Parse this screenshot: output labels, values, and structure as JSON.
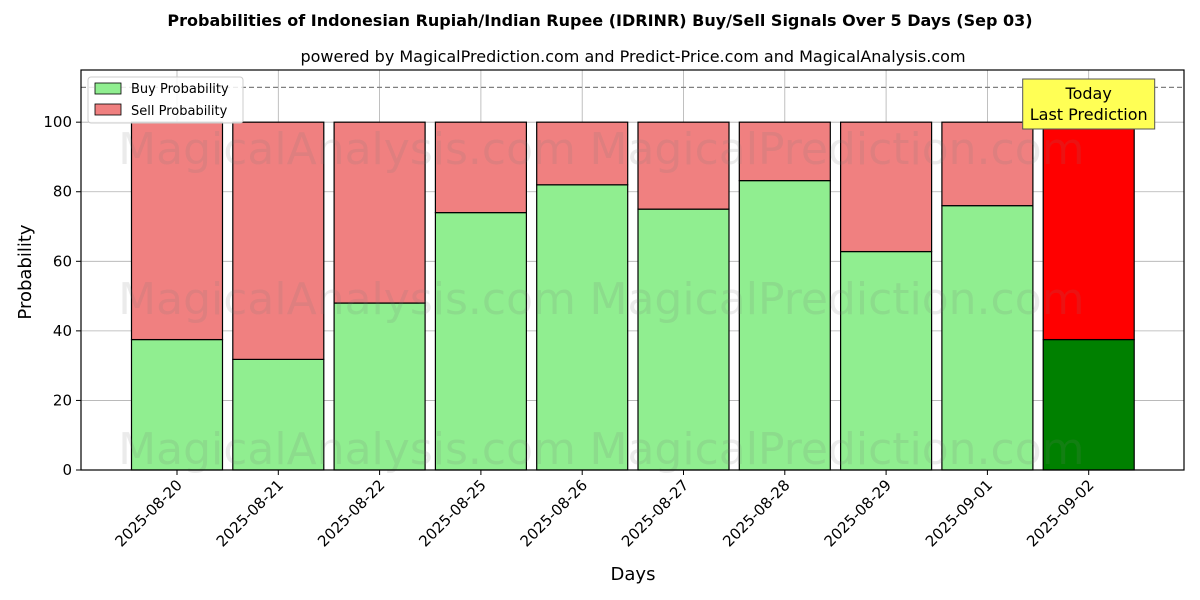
{
  "colors": {
    "buy": "#90ee90",
    "sell": "#f08080",
    "buy_today": "#008000",
    "sell_today": "#ff0000",
    "annotation_bg": "#ffff55",
    "grid": "#b0b0b0"
  },
  "watermarks": [
    "MagicalAnalysis.com",
    "MagicalPrediction.com"
  ],
  "chart_data": {
    "type": "bar",
    "stacked": true,
    "title": "Probabilities of Indonesian Rupiah/Indian Rupee (IDRINR) Buy/Sell Signals Over 5 Days (Sep 03)",
    "subtitle": "powered by MagicalPrediction.com and Predict-Price.com and MagicalAnalysis.com",
    "xlabel": "Days",
    "ylabel": "Probability",
    "ylim": [
      0,
      115
    ],
    "yticks": [
      0,
      20,
      40,
      60,
      80,
      100
    ],
    "grid": true,
    "legend_position": "top-left",
    "reference_line": 110,
    "categories": [
      "2025-08-20",
      "2025-08-21",
      "2025-08-22",
      "2025-08-25",
      "2025-08-26",
      "2025-08-27",
      "2025-08-28",
      "2025-08-29",
      "2025-09-01",
      "2025-09-02"
    ],
    "series": [
      {
        "name": "Buy Probability",
        "values": [
          37.5,
          31.8,
          48.0,
          74.0,
          82.0,
          75.0,
          83.2,
          62.8,
          76.0,
          37.5
        ]
      },
      {
        "name": "Sell Probability",
        "values": [
          62.5,
          68.2,
          52.0,
          26.0,
          18.0,
          25.0,
          16.8,
          37.2,
          24.0,
          62.5
        ]
      }
    ],
    "annotation": {
      "lines": [
        "Today",
        "Last Prediction"
      ],
      "category": "2025-09-02"
    }
  }
}
